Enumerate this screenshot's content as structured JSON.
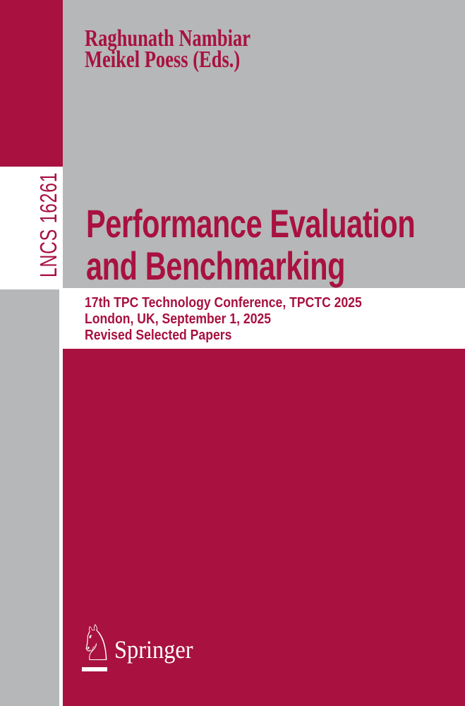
{
  "cover": {
    "series_label": "LNCS 16261",
    "authors": [
      "Raghunath Nambiar",
      "Meikel Poess (Eds.)"
    ],
    "title_lines": [
      "Performance Evaluation",
      "and Benchmarking"
    ],
    "subtitle_lines": [
      "17th TPC Technology Conference, TPCTC 2025",
      "London, UK, September 1, 2025",
      "Revised Selected Papers"
    ],
    "publisher": {
      "name": "Springer",
      "logo_icon": "chess-knight-icon",
      "logo_glyph": "♘"
    },
    "colors": {
      "accent_red": "#A81140",
      "panel_gray": "#B6B7B8",
      "band_white": "#FFFFFF"
    }
  }
}
